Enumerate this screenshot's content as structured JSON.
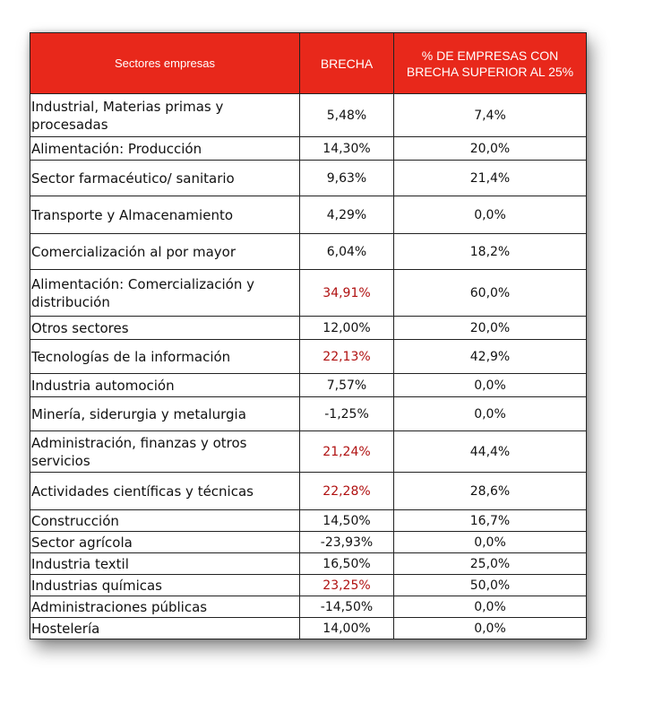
{
  "table": {
    "headers": [
      "Sectores empresas",
      "BRECHA",
      "% DE EMPRESAS CON BRECHA SUPERIOR AL 25%"
    ],
    "header_bg": "#e8281b",
    "highlight_color": "#b01010",
    "rows": [
      {
        "sector": "Industrial, Materias primas y procesadas",
        "brecha": "5,48%",
        "pct": "7,4%"
      },
      {
        "sector": "Alimentación: Producción",
        "brecha": "14,30%",
        "pct": "20,0%"
      },
      {
        "sector": "Sector farmacéutico/ sanitario",
        "brecha": "9,63%",
        "pct": "21,4%"
      },
      {
        "sector": "Transporte y Almacenamiento",
        "brecha": "4,29%",
        "pct": "0,0%"
      },
      {
        "sector": "Comercialización al por mayor",
        "brecha": "6,04%",
        "pct": "18,2%"
      },
      {
        "sector": "Alimentación: Comercialización y distribución",
        "brecha": "34,91%",
        "pct": "60,0%"
      },
      {
        "sector": "Otros sectores",
        "brecha": "12,00%",
        "pct": "20,0%"
      },
      {
        "sector": "Tecnologías de la información",
        "brecha": "22,13%",
        "pct": "42,9%"
      },
      {
        "sector": "Industria automoción",
        "brecha": "7,57%",
        "pct": "0,0%"
      },
      {
        "sector": "Minería, siderurgia y metalurgia",
        "brecha": "-1,25%",
        "pct": "0,0%"
      },
      {
        "sector": "Administración, finanzas y otros servicios",
        "brecha": "21,24%",
        "pct": "44,4%"
      },
      {
        "sector": "Actividades científicas y técnicas",
        "brecha": "22,28%",
        "pct": "28,6%"
      },
      {
        "sector": "Construcción",
        "brecha": "14,50%",
        "pct": "16,7%"
      },
      {
        "sector": "Sector agrícola",
        "brecha": "-23,93%",
        "pct": "0,0%"
      },
      {
        "sector": "Industria textil",
        "brecha": "16,50%",
        "pct": "25,0%"
      },
      {
        "sector": "Industrias químicas",
        "brecha": "23,25%",
        "pct": "50,0%"
      },
      {
        "sector": "Administraciones públicas",
        "brecha": "-14,50%",
        "pct": "0,0%"
      },
      {
        "sector": "Hostelería",
        "brecha": "14,00%",
        "pct": "0,0%"
      }
    ]
  }
}
